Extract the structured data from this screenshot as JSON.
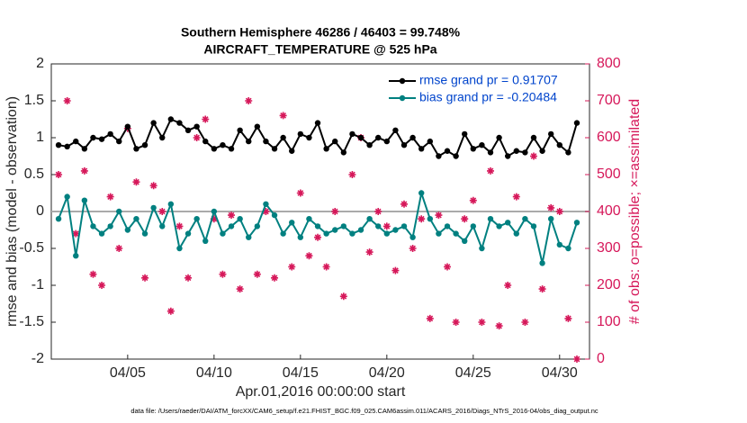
{
  "chart_data": {
    "type": "line",
    "title": "Southern Hemisphere 46286 / 46403 = 99.748%",
    "subtitle": "AIRCRAFT_TEMPERATURE @ 525 hPa",
    "xlabel": "Apr.01,2016 00:00:00 start",
    "ylabel": "rmse and bias (model - observation)",
    "y2label": "# of obs: o=possible; ×=assimilated",
    "footnote": "data file: /Users/raeder/DAI/ATM_forcXX/CAM6_setup/f.e21.FHIST_BGC.f09_025.CAM6assim.011/ACARS_2016/Diags_NTrS_2016-04/obs_diag_output.nc",
    "x": [
      1,
      1.5,
      2,
      2.5,
      3,
      3.5,
      4,
      4.5,
      5,
      5.5,
      6,
      6.5,
      7,
      7.5,
      8,
      8.5,
      9,
      9.5,
      10,
      10.5,
      11,
      11.5,
      12,
      12.5,
      13,
      13.5,
      14,
      14.5,
      15,
      15.5,
      16,
      16.5,
      17,
      17.5,
      18,
      18.5,
      19,
      19.5,
      20,
      20.5,
      21,
      21.5,
      22,
      22.5,
      23,
      23.5,
      24,
      24.5,
      25,
      25.5,
      26,
      26.5,
      27,
      27.5,
      28,
      28.5,
      29,
      29.5,
      30,
      30.5,
      31
    ],
    "xlim": [
      0.58,
      31.73
    ],
    "xticks": [
      {
        "value": 5,
        "label": "04/05"
      },
      {
        "value": 10,
        "label": "04/10"
      },
      {
        "value": 15,
        "label": "04/15"
      },
      {
        "value": 20,
        "label": "04/20"
      },
      {
        "value": 25,
        "label": "04/25"
      },
      {
        "value": 30,
        "label": "04/30"
      }
    ],
    "ylim": [
      -2,
      2
    ],
    "yticks": [
      -2,
      -1.5,
      -1,
      -0.5,
      0,
      0.5,
      1,
      1.5,
      2
    ],
    "y2lim": [
      0,
      800
    ],
    "y2ticks": [
      0,
      100,
      200,
      300,
      400,
      500,
      600,
      700,
      800
    ],
    "legend": "upper right",
    "series": [
      {
        "name": "rmse grand pr = 0.91707",
        "color": "#000000",
        "values": [
          0.9,
          0.88,
          0.95,
          0.85,
          1.0,
          0.98,
          1.05,
          0.95,
          1.15,
          0.85,
          0.9,
          1.2,
          1.0,
          1.25,
          1.2,
          1.1,
          1.15,
          0.95,
          0.85,
          0.9,
          0.85,
          1.1,
          0.95,
          1.15,
          0.95,
          0.85,
          1.0,
          0.82,
          1.05,
          1.0,
          1.2,
          0.85,
          0.95,
          0.8,
          1.05,
          1.0,
          0.9,
          1.0,
          0.95,
          1.1,
          0.9,
          1.0,
          0.85,
          0.95,
          0.75,
          0.82,
          0.75,
          1.05,
          0.85,
          0.9,
          0.8,
          1.0,
          0.75,
          0.82,
          0.8,
          1.0,
          0.82,
          1.05,
          0.9,
          0.8,
          1.2
        ]
      },
      {
        "name": "bias grand pr = -0.20484",
        "color": "#008080",
        "values": [
          -0.1,
          0.2,
          -0.6,
          0.15,
          -0.2,
          -0.3,
          -0.2,
          0.0,
          -0.25,
          -0.1,
          -0.3,
          0.05,
          -0.2,
          0.1,
          -0.5,
          -0.3,
          -0.1,
          -0.4,
          0.0,
          -0.3,
          -0.2,
          -0.1,
          -0.35,
          -0.2,
          0.1,
          -0.05,
          -0.3,
          -0.15,
          -0.35,
          -0.1,
          -0.2,
          -0.3,
          -0.25,
          -0.2,
          -0.3,
          -0.25,
          -0.1,
          -0.2,
          -0.3,
          -0.25,
          -0.2,
          -0.35,
          0.25,
          -0.1,
          -0.3,
          -0.2,
          -0.3,
          -0.4,
          -0.2,
          -0.5,
          -0.1,
          -0.2,
          -0.15,
          -0.3,
          -0.1,
          -0.2,
          -0.7,
          -0.1,
          -0.45,
          -0.5,
          -0.15
        ]
      },
      {
        "color": "#d6185a",
        "axis": "y2",
        "values": [
          500,
          700,
          340,
          510,
          230,
          200,
          440,
          300,
          625,
          480,
          220,
          470,
          400,
          130,
          360,
          220,
          600,
          650,
          380,
          230,
          390,
          190,
          700,
          230,
          400,
          220,
          660,
          250,
          450,
          280,
          330,
          250,
          400,
          170,
          500,
          600,
          290,
          400,
          360,
          240,
          420,
          300,
          380,
          110,
          390,
          250,
          100,
          380,
          430,
          100,
          510,
          90,
          200,
          440,
          100,
          550,
          190,
          410,
          400,
          110,
          0
        ]
      }
    ]
  }
}
